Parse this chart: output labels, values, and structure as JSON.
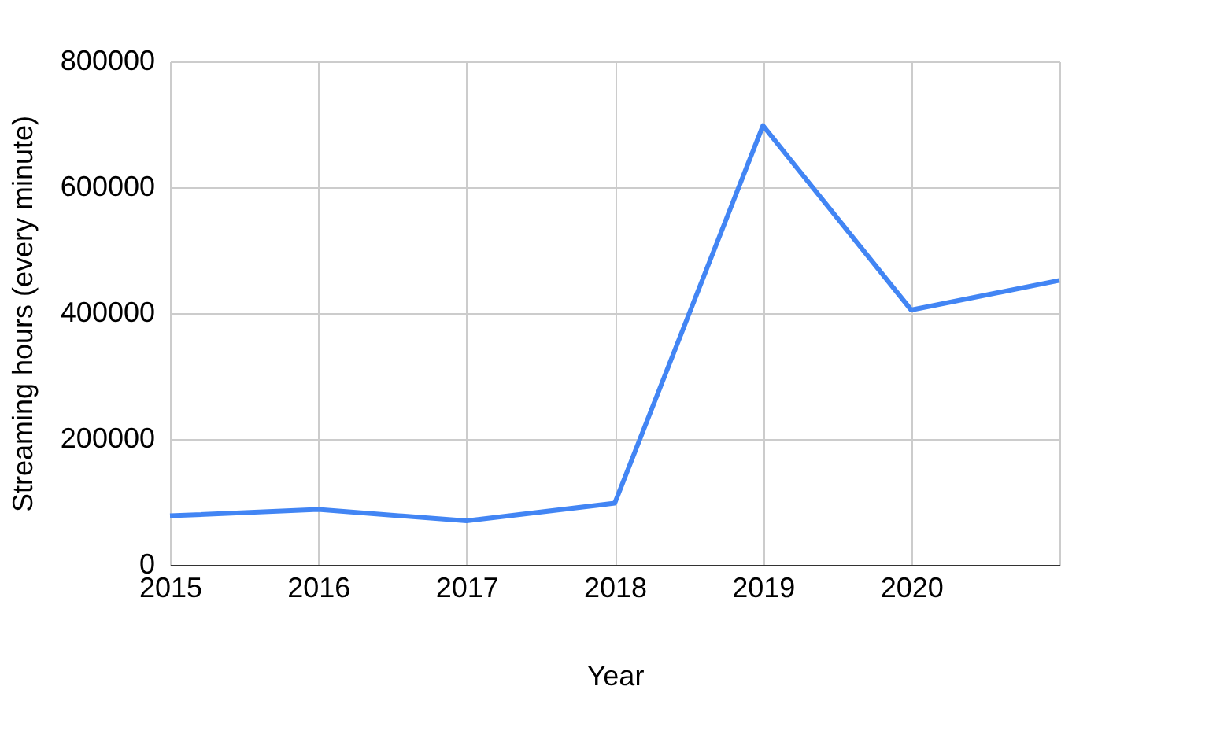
{
  "chart_data": {
    "type": "line",
    "xlabel": "Year",
    "ylabel": "Streaming hours (every minute)",
    "x": [
      2015,
      2016,
      2017,
      2018,
      2019,
      2020,
      2021
    ],
    "series": [
      {
        "color": "#4285f4",
        "values": [
          78000,
          88000,
          70000,
          98000,
          698000,
          405000,
          452000
        ]
      }
    ],
    "xlim": [
      2015,
      2021
    ],
    "xticks": [
      2015,
      2016,
      2017,
      2018,
      2019,
      2020,
      {
        "value": 2021,
        "label": null
      }
    ],
    "ylim": [
      0,
      800000
    ],
    "yticks": [
      0,
      200000,
      400000,
      600000,
      800000
    ],
    "grid": true,
    "marker": "none",
    "line_style": "solid"
  }
}
